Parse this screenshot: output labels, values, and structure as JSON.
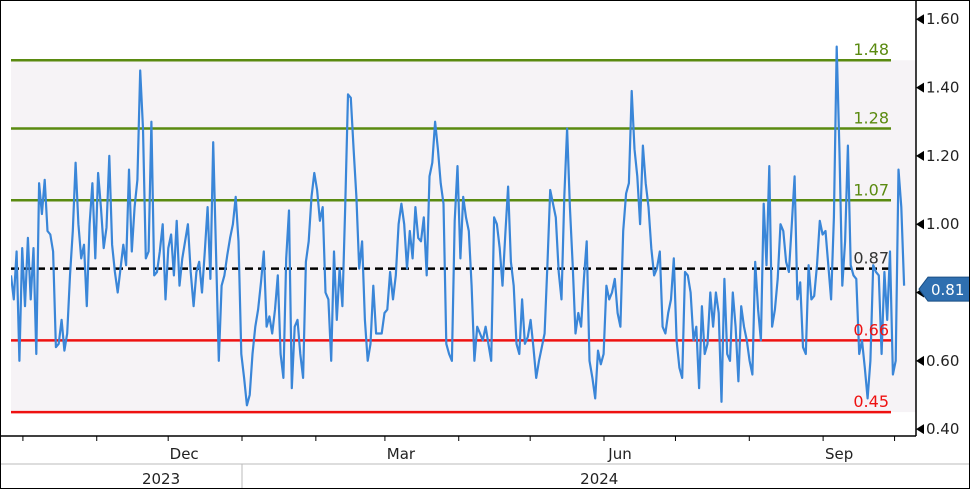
{
  "chart_data": {
    "type": "line",
    "y_axis": {
      "ylim": [
        0.38,
        1.63
      ],
      "tick_values": [
        0.4,
        0.6,
        0.8,
        1.0,
        1.2,
        1.4,
        1.6
      ],
      "tick_labels": [
        "0.40",
        "0.60",
        "0.80",
        "1.00",
        "1.20",
        "1.40",
        "1.60"
      ],
      "position": "right"
    },
    "x_axis": {
      "range": [
        "2023-09-26",
        "2024-10-10"
      ],
      "month_labels": [
        {
          "date": "2023-12-01",
          "label": "Dec"
        },
        {
          "date": "2024-03-01",
          "label": "Mar"
        },
        {
          "date": "2024-06-01",
          "label": "Jun"
        },
        {
          "date": "2024-09-01",
          "label": "Sep"
        }
      ],
      "year_labels": [
        {
          "date": "2023-11-28",
          "label": "2023"
        },
        {
          "date": "2024-05-30",
          "label": "2024"
        }
      ],
      "year_divider_date": "2024-01-01"
    },
    "reference_lines": [
      {
        "value": 1.48,
        "label": "1.48",
        "color": "#5a8a10",
        "style": "solid"
      },
      {
        "value": 1.28,
        "label": "1.28",
        "color": "#5a8a10",
        "style": "solid"
      },
      {
        "value": 1.07,
        "label": "1.07",
        "color": "#5a8a10",
        "style": "solid"
      },
      {
        "value": 0.87,
        "label": "0.87",
        "color": "#000000",
        "style": "dashed"
      },
      {
        "value": 0.66,
        "label": "0.66",
        "color": "#ee1111",
        "style": "solid"
      },
      {
        "value": 0.45,
        "label": "0.45",
        "color": "#ee1111",
        "style": "solid"
      }
    ],
    "current_value": {
      "value": 0.81,
      "label": "0.81"
    },
    "series": [
      {
        "color": "#3a86d8",
        "x_start": "2023-09-26",
        "x_end": "2024-10-05",
        "values": [
          0.85,
          0.78,
          0.92,
          0.6,
          0.93,
          0.76,
          0.96,
          0.78,
          0.93,
          0.62,
          1.12,
          1.03,
          1.13,
          0.98,
          0.97,
          0.92,
          0.64,
          0.65,
          0.72,
          0.63,
          0.68,
          0.85,
          0.98,
          1.18,
          1.0,
          0.9,
          0.94,
          0.76,
          1.0,
          1.12,
          0.9,
          1.15,
          1.05,
          0.93,
          0.99,
          1.2,
          0.94,
          0.86,
          0.8,
          0.87,
          0.94,
          0.88,
          1.16,
          0.92,
          1.05,
          1.13,
          1.45,
          1.28,
          0.9,
          0.92,
          1.3,
          0.85,
          0.86,
          0.92,
          1.0,
          0.78,
          0.93,
          0.97,
          0.85,
          1.01,
          0.82,
          0.9,
          0.95,
          1.0,
          0.86,
          0.76,
          0.86,
          0.89,
          0.8,
          0.92,
          1.05,
          0.84,
          1.24,
          0.92,
          0.6,
          0.82,
          0.85,
          0.91,
          0.96,
          1.0,
          1.08,
          0.95,
          0.62,
          0.55,
          0.47,
          0.5,
          0.62,
          0.7,
          0.75,
          0.83,
          0.92,
          0.7,
          0.73,
          0.68,
          0.75,
          0.85,
          0.62,
          0.55,
          0.9,
          1.04,
          0.52,
          0.7,
          0.72,
          0.62,
          0.55,
          0.89,
          0.95,
          1.08,
          1.15,
          1.1,
          1.01,
          1.05,
          0.8,
          0.78,
          0.6,
          0.92,
          0.72,
          0.87,
          0.76,
          1.05,
          1.38,
          1.37,
          1.22,
          1.08,
          0.87,
          0.95,
          0.72,
          0.6,
          0.65,
          0.82,
          0.68,
          0.68,
          0.68,
          0.74,
          0.75,
          0.86,
          0.78,
          0.85,
          1.0,
          1.06,
          1.0,
          0.87,
          0.98,
          0.9,
          1.05,
          0.96,
          0.95,
          1.02,
          0.85,
          1.14,
          1.18,
          1.3,
          1.22,
          1.12,
          1.06,
          0.65,
          0.62,
          0.6,
          1.01,
          1.17,
          0.9,
          1.08,
          1.02,
          0.98,
          0.82,
          0.6,
          0.7,
          0.68,
          0.66,
          0.7,
          0.65,
          0.6,
          1.02,
          1.0,
          0.93,
          0.82,
          0.97,
          1.11,
          0.89,
          0.82,
          0.65,
          0.62,
          0.78,
          0.65,
          0.67,
          0.72,
          0.64,
          0.55,
          0.6,
          0.64,
          0.68,
          0.88,
          1.1,
          1.06,
          1.02,
          0.86,
          0.78,
          1.08,
          1.28,
          1.05,
          0.88,
          0.68,
          0.74,
          0.7,
          0.84,
          0.95,
          0.6,
          0.55,
          0.49,
          0.63,
          0.59,
          0.62,
          0.82,
          0.78,
          0.8,
          0.84,
          0.74,
          0.7,
          0.98,
          1.09,
          1.12,
          1.39,
          1.22,
          1.14,
          1.0,
          1.23,
          1.12,
          1.05,
          0.93,
          0.85,
          0.87,
          0.92,
          0.7,
          0.68,
          0.74,
          0.78,
          0.9,
          0.66,
          0.58,
          0.55,
          0.86,
          0.85,
          0.8,
          0.66,
          0.7,
          0.52,
          0.76,
          0.62,
          0.65,
          0.8,
          0.7,
          0.8,
          0.74,
          0.48,
          0.84,
          0.62,
          0.6,
          0.8,
          0.7,
          0.54,
          0.76,
          0.7,
          0.66,
          0.6,
          0.56,
          0.89,
          0.75,
          0.66,
          1.06,
          0.88,
          1.17,
          0.7,
          0.75,
          0.84,
          1.0,
          0.98,
          0.89,
          0.86,
          1.0,
          1.14,
          0.78,
          0.83,
          0.64,
          0.62,
          0.88,
          0.78,
          0.79,
          0.88,
          1.01,
          0.97,
          0.98,
          0.88,
          0.78,
          1.02,
          1.52,
          1.21,
          0.82,
          0.95,
          1.23,
          0.88,
          0.85,
          0.84,
          0.62,
          0.66,
          0.58,
          0.49,
          0.6,
          0.88,
          0.86,
          0.85,
          0.62,
          0.86,
          0.72,
          0.92,
          0.56,
          0.6,
          1.16,
          1.05,
          0.82
        ]
      }
    ]
  }
}
